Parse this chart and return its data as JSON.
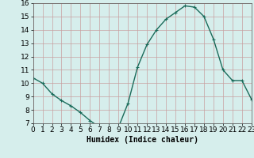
{
  "x": [
    0,
    1,
    2,
    3,
    4,
    5,
    6,
    7,
    8,
    9,
    10,
    11,
    12,
    13,
    14,
    15,
    16,
    17,
    18,
    19,
    20,
    21,
    22,
    23
  ],
  "y": [
    10.4,
    10.0,
    9.2,
    8.7,
    8.3,
    7.8,
    7.2,
    6.7,
    6.7,
    6.7,
    8.5,
    11.2,
    12.9,
    14.0,
    14.8,
    15.3,
    15.8,
    15.7,
    15.0,
    13.3,
    11.0,
    10.2,
    10.2,
    8.8
  ],
  "xlabel": "Humidex (Indice chaleur)",
  "ylim": [
    7,
    16
  ],
  "xlim": [
    0,
    23
  ],
  "line_color": "#1a6b5a",
  "marker": "+",
  "bg_color": "#d6eeec",
  "grid_color": "#c8a0a0",
  "yticks": [
    7,
    8,
    9,
    10,
    11,
    12,
    13,
    14,
    15,
    16
  ],
  "xticks": [
    0,
    1,
    2,
    3,
    4,
    5,
    6,
    7,
    8,
    9,
    10,
    11,
    12,
    13,
    14,
    15,
    16,
    17,
    18,
    19,
    20,
    21,
    22,
    23
  ],
  "xlabel_fontsize": 7,
  "tick_fontsize": 6.5
}
